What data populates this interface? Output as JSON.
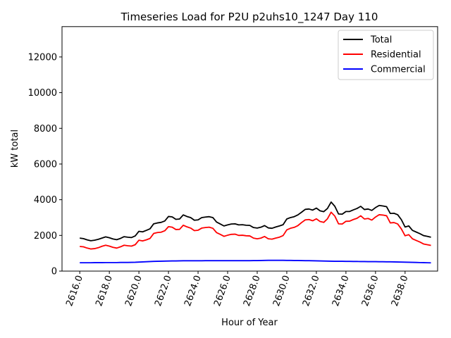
{
  "chart_data": {
    "type": "line",
    "title": "Timeseries Load for P2U p2uhs10_1247  Day 110",
    "xlabel": "Hour of Year",
    "ylabel": "kW total",
    "xlim": [
      2614.8,
      2640.2
    ],
    "ylim": [
      0,
      13700
    ],
    "x_ticks": [
      2616,
      2618,
      2620,
      2622,
      2624,
      2626,
      2628,
      2630,
      2632,
      2634,
      2636,
      2638
    ],
    "x_tick_labels": [
      "2616.0",
      "2618.0",
      "2620.0",
      "2622.0",
      "2624.0",
      "2626.0",
      "2628.0",
      "2630.0",
      "2632.0",
      "2634.0",
      "2636.0",
      "2638.0"
    ],
    "y_ticks": [
      0,
      2000,
      4000,
      6000,
      8000,
      10000,
      12000
    ],
    "y_tick_labels": [
      "0",
      "2000",
      "4000",
      "6000",
      "8000",
      "10000",
      "12000"
    ],
    "legend_position": "top-right",
    "x": [
      2616.0,
      2616.25,
      2616.5,
      2616.75,
      2617.0,
      2617.25,
      2617.5,
      2617.75,
      2618.0,
      2618.25,
      2618.5,
      2618.75,
      2619.0,
      2619.25,
      2619.5,
      2619.75,
      2620.0,
      2620.25,
      2620.5,
      2620.75,
      2621.0,
      2621.25,
      2621.5,
      2621.75,
      2622.0,
      2622.25,
      2622.5,
      2622.75,
      2623.0,
      2623.25,
      2623.5,
      2623.75,
      2624.0,
      2624.25,
      2624.5,
      2624.75,
      2625.0,
      2625.25,
      2625.5,
      2625.75,
      2626.0,
      2626.25,
      2626.5,
      2626.75,
      2627.0,
      2627.25,
      2627.5,
      2627.75,
      2628.0,
      2628.25,
      2628.5,
      2628.75,
      2629.0,
      2629.25,
      2629.5,
      2629.75,
      2630.0,
      2630.25,
      2630.5,
      2630.75,
      2631.0,
      2631.25,
      2631.5,
      2631.75,
      2632.0,
      2632.25,
      2632.5,
      2632.75,
      2633.0,
      2633.25,
      2633.5,
      2633.75,
      2634.0,
      2634.25,
      2634.5,
      2634.75,
      2635.0,
      2635.25,
      2635.5,
      2635.75,
      2636.0,
      2636.25,
      2636.5,
      2636.75,
      2637.0,
      2637.25,
      2637.5,
      2637.75,
      2638.0,
      2638.25,
      2638.5,
      2638.75,
      2639.0,
      2639.25,
      2639.5,
      2639.75
    ],
    "series": [
      {
        "name": "Total",
        "color": "#000000",
        "values": [
          1850,
          1820,
          1750,
          1700,
          1730,
          1780,
          1850,
          1920,
          1870,
          1800,
          1760,
          1830,
          1930,
          1900,
          1880,
          1970,
          2230,
          2200,
          2280,
          2370,
          2650,
          2700,
          2730,
          2810,
          3060,
          3040,
          2900,
          2920,
          3150,
          3060,
          3000,
          2850,
          2870,
          3000,
          3030,
          3050,
          3000,
          2750,
          2640,
          2530,
          2590,
          2640,
          2650,
          2590,
          2600,
          2570,
          2560,
          2440,
          2410,
          2460,
          2550,
          2420,
          2400,
          2470,
          2530,
          2600,
          2920,
          3000,
          3050,
          3150,
          3300,
          3460,
          3480,
          3420,
          3530,
          3380,
          3330,
          3510,
          3870,
          3630,
          3200,
          3190,
          3340,
          3340,
          3430,
          3510,
          3630,
          3450,
          3480,
          3400,
          3560,
          3680,
          3650,
          3610,
          3230,
          3240,
          3160,
          2880,
          2470,
          2530,
          2280,
          2190,
          2100,
          1990,
          1950,
          1900
        ]
      },
      {
        "name": "Residential",
        "color": "#ff0000",
        "values": [
          1380,
          1360,
          1290,
          1240,
          1260,
          1310,
          1390,
          1450,
          1400,
          1330,
          1290,
          1360,
          1450,
          1420,
          1400,
          1480,
          1730,
          1690,
          1750,
          1830,
          2110,
          2160,
          2180,
          2260,
          2490,
          2460,
          2330,
          2340,
          2570,
          2480,
          2410,
          2270,
          2290,
          2410,
          2440,
          2460,
          2400,
          2160,
          2060,
          1950,
          2010,
          2060,
          2070,
          2000,
          2010,
          1980,
          1970,
          1850,
          1810,
          1850,
          1940,
          1810,
          1790,
          1850,
          1900,
          1990,
          2310,
          2400,
          2450,
          2550,
          2720,
          2870,
          2890,
          2820,
          2930,
          2780,
          2730,
          2930,
          3300,
          3080,
          2650,
          2640,
          2790,
          2800,
          2890,
          2960,
          3100,
          2920,
          2950,
          2860,
          3030,
          3160,
          3140,
          3100,
          2700,
          2720,
          2640,
          2360,
          1980,
          2040,
          1810,
          1720,
          1630,
          1520,
          1480,
          1440
        ]
      },
      {
        "name": "Commercial",
        "color": "#0000ff",
        "values": [
          470,
          470,
          470,
          470,
          475,
          475,
          475,
          480,
          480,
          480,
          480,
          485,
          485,
          485,
          490,
          495,
          505,
          515,
          525,
          535,
          545,
          550,
          555,
          560,
          565,
          570,
          570,
          575,
          580,
          580,
          580,
          580,
          580,
          580,
          585,
          585,
          585,
          585,
          585,
          585,
          585,
          585,
          585,
          585,
          585,
          585,
          585,
          590,
          590,
          595,
          600,
          605,
          605,
          605,
          605,
          605,
          600,
          600,
          595,
          595,
          590,
          585,
          585,
          580,
          575,
          570,
          565,
          560,
          555,
          550,
          550,
          550,
          545,
          545,
          540,
          540,
          535,
          535,
          530,
          530,
          530,
          525,
          525,
          520,
          520,
          515,
          510,
          505,
          500,
          495,
          490,
          485,
          480,
          475,
          470,
          465
        ]
      }
    ]
  }
}
